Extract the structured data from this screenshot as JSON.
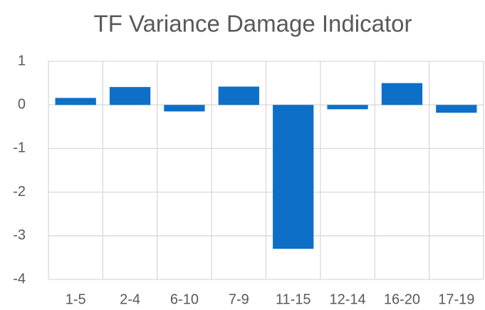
{
  "chart_data": {
    "type": "bar",
    "title": "TF Variance Damage Indicator",
    "categories": [
      "1-5",
      "2-4",
      "6-10",
      "7-9",
      "11-15",
      "12-14",
      "16-20",
      "17-19"
    ],
    "values": [
      0.16,
      0.41,
      -0.15,
      0.42,
      -3.3,
      -0.1,
      0.5,
      -0.18
    ],
    "color": "#0e6fc7",
    "ylim": [
      -4,
      1
    ],
    "yticks": [
      -4,
      -3,
      -2,
      -1,
      0,
      1
    ],
    "grid": true
  }
}
